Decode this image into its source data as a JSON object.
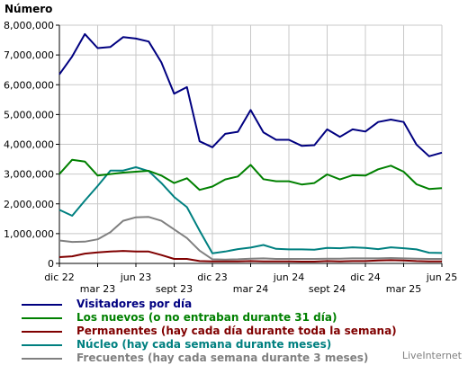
{
  "chart_data": {
    "type": "line",
    "ylabel": "Número",
    "ylim": [
      0,
      8000000
    ],
    "y_ticks": [
      "0",
      "1,000,000",
      "2,000,000",
      "3,000,000",
      "4,000,000",
      "5,000,000",
      "6,000,000",
      "7,000,000",
      "8,000,000"
    ],
    "x_tick_labels": [
      "dic 22",
      "mar 23",
      "jun 23",
      "sept 23",
      "dic 23",
      "mar 24",
      "jun 24",
      "sept 24",
      "dic 24",
      "mar 25",
      "jun 25"
    ],
    "grid": true,
    "legend_position": "bottom",
    "series": [
      {
        "name": "Visitadores por día",
        "color": "#000080",
        "values": [
          6350000,
          6950000,
          7700000,
          7230000,
          7270000,
          7600000,
          7550000,
          7450000,
          6750000,
          5700000,
          5920000,
          4100000,
          3900000,
          4350000,
          4420000,
          5150000,
          4400000,
          4150000,
          4150000,
          3950000,
          3970000,
          4500000,
          4250000,
          4500000,
          4430000,
          4750000,
          4830000,
          4750000,
          3990000,
          3600000,
          3720000
        ]
      },
      {
        "name": "Los nuevos (o no entraban durante 31 día)",
        "color": "#008000",
        "values": [
          3000000,
          3480000,
          3420000,
          2950000,
          3000000,
          3050000,
          3080000,
          3110000,
          2950000,
          2700000,
          2860000,
          2470000,
          2580000,
          2820000,
          2920000,
          3310000,
          2830000,
          2760000,
          2760000,
          2650000,
          2700000,
          2990000,
          2820000,
          2960000,
          2950000,
          3160000,
          3280000,
          3080000,
          2660000,
          2500000,
          2530000
        ]
      },
      {
        "name": "Permanentes (hay cada día durante toda la semana)",
        "color": "#800000",
        "values": [
          210000,
          240000,
          330000,
          370000,
          400000,
          420000,
          400000,
          400000,
          280000,
          150000,
          150000,
          80000,
          70000,
          70000,
          70000,
          80000,
          70000,
          70000,
          70000,
          60000,
          60000,
          80000,
          70000,
          80000,
          80000,
          100000,
          110000,
          100000,
          80000,
          70000,
          70000
        ]
      },
      {
        "name": "Núcleo (hay cada semana durante meses)",
        "color": "#008080",
        "values": [
          1800000,
          1600000,
          2110000,
          2600000,
          3120000,
          3120000,
          3230000,
          3100000,
          2700000,
          2230000,
          1890000,
          1100000,
          340000,
          400000,
          480000,
          530000,
          620000,
          490000,
          470000,
          470000,
          460000,
          520000,
          510000,
          540000,
          520000,
          480000,
          540000,
          510000,
          470000,
          360000,
          350000
        ]
      },
      {
        "name": "Frecuentes (hay cada semana durante 3 meses)",
        "color": "#808080",
        "values": [
          770000,
          720000,
          730000,
          810000,
          1050000,
          1430000,
          1550000,
          1560000,
          1430000,
          1140000,
          850000,
          430000,
          140000,
          130000,
          140000,
          160000,
          170000,
          150000,
          150000,
          150000,
          150000,
          160000,
          160000,
          170000,
          170000,
          170000,
          180000,
          170000,
          160000,
          150000,
          150000
        ]
      }
    ]
  },
  "watermark": "LiveInternet"
}
